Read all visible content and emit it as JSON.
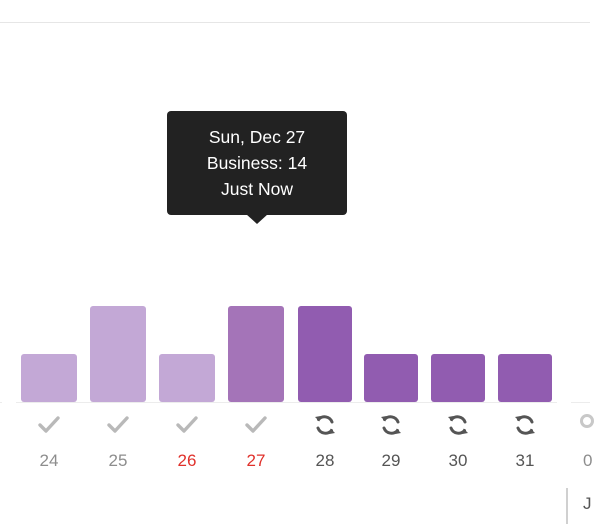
{
  "chart_data": {
    "type": "bar",
    "categories": [
      "24",
      "25",
      "26",
      "27",
      "28",
      "29",
      "30",
      "31",
      "0"
    ],
    "values": [
      4,
      8,
      4,
      8,
      8,
      4,
      4,
      4,
      null
    ],
    "ylim": [
      0,
      14
    ]
  },
  "days": [
    {
      "label": "24",
      "status": "posted",
      "color": "#c3a8d6",
      "label_style": "past"
    },
    {
      "label": "25",
      "status": "posted",
      "color": "#c3a8d6",
      "label_style": "past"
    },
    {
      "label": "26",
      "status": "posted",
      "color": "#c3a8d6",
      "label_style": "weekend"
    },
    {
      "label": "27",
      "status": "posted",
      "color": "#a474b8",
      "label_style": "weekend"
    },
    {
      "label": "28",
      "status": "scheduled",
      "color": "#915cb0",
      "label_style": "future"
    },
    {
      "label": "29",
      "status": "scheduled",
      "color": "#915cb0",
      "label_style": "future"
    },
    {
      "label": "30",
      "status": "scheduled",
      "color": "#915cb0",
      "label_style": "future"
    },
    {
      "label": "31",
      "status": "scheduled",
      "color": "#915cb0",
      "label_style": "future"
    }
  ],
  "partial_day_label": "0",
  "partial_bottom_text": "J",
  "tooltip": {
    "line1": "Sun, Dec 27",
    "line2": "Business: 14",
    "line3": "Just Now"
  },
  "icons": {
    "posted": "check-icon",
    "scheduled": "refresh-icon"
  },
  "colors": {
    "icon": "#b9b9b9",
    "icon_scheduled": "#555555",
    "weekend": "#e0312b",
    "tooltip_bg": "#222222"
  }
}
